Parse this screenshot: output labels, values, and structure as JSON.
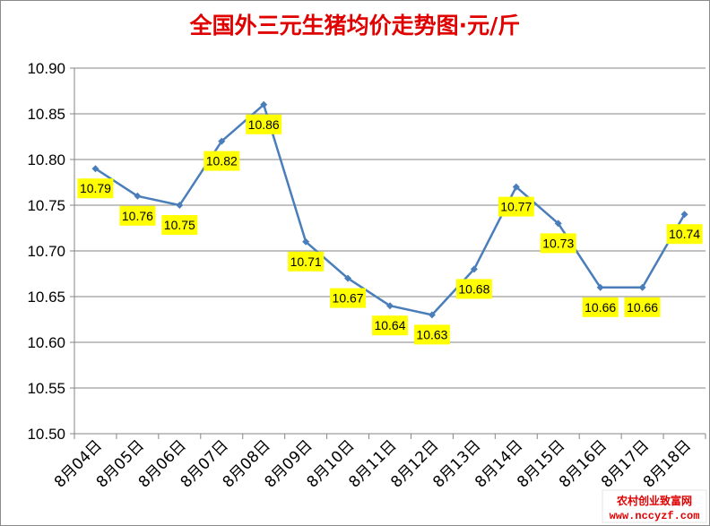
{
  "chart_data": {
    "type": "line",
    "title": "全国外三元生猪均价走势图·元/斤",
    "categories": [
      "8月04日",
      "8月05日",
      "8月06日",
      "8月07日",
      "8月08日",
      "8月09日",
      "8月10日",
      "8月11日",
      "8月12日",
      "8月13日",
      "8月14日",
      "8月15日",
      "8月16日",
      "8月17日",
      "8月18日"
    ],
    "values": [
      10.79,
      10.76,
      10.75,
      10.82,
      10.86,
      10.71,
      10.67,
      10.64,
      10.63,
      10.68,
      10.77,
      10.73,
      10.66,
      10.66,
      10.74
    ],
    "data_labels": [
      "10.79",
      "10.76",
      "10.75",
      "10.82",
      "10.86",
      "10.71",
      "10.67",
      "10.64",
      "10.63",
      "10.68",
      "10.77",
      "10.73",
      "10.66",
      "10.66",
      "10.74"
    ],
    "ylim": [
      10.5,
      10.9
    ],
    "yticks": [
      "10.50",
      "10.55",
      "10.60",
      "10.65",
      "10.70",
      "10.75",
      "10.80",
      "10.85",
      "10.90"
    ],
    "grid": true,
    "colors": {
      "line": "#4a7ebb",
      "label_bg": "#ffff00",
      "title": "#e00000",
      "grid": "#868686"
    }
  },
  "watermark": {
    "line1": "农村创业致富网",
    "line2": "www.nccyzf.com"
  }
}
